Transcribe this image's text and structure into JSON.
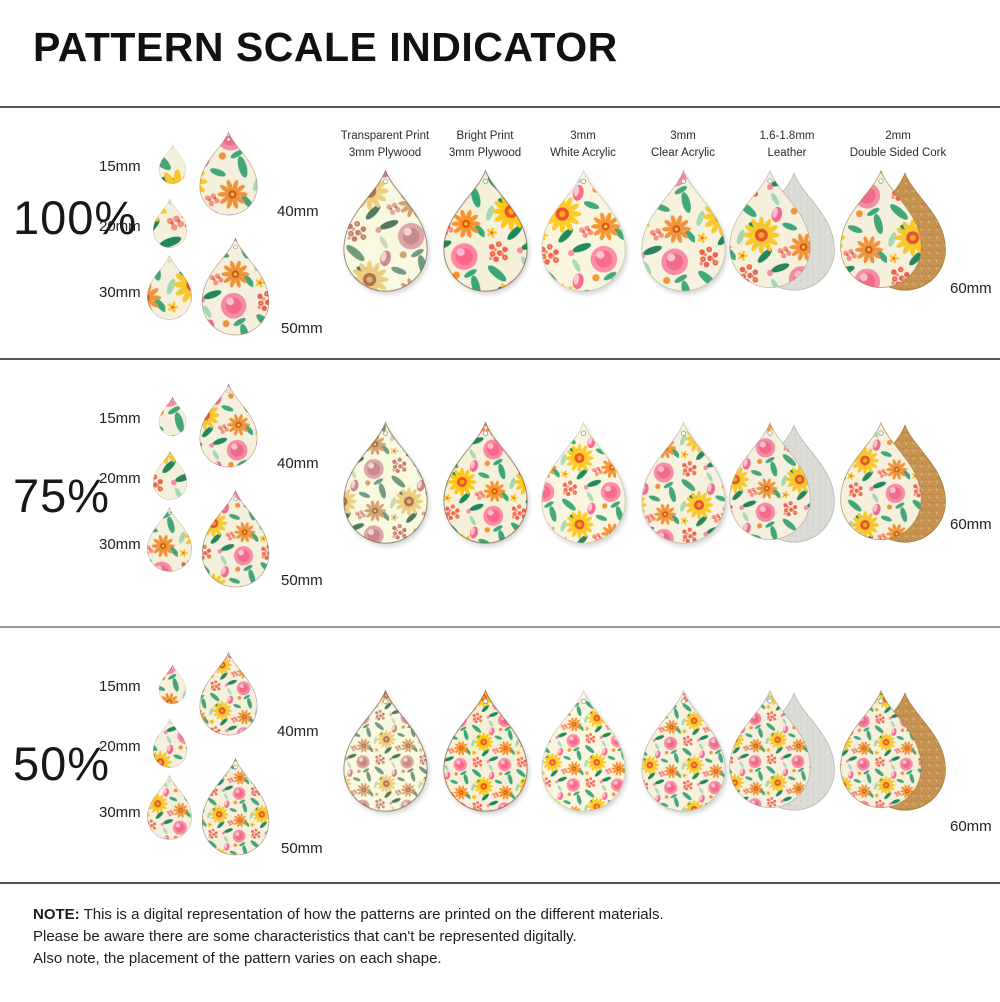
{
  "title": "PATTERN SCALE INDICATOR",
  "header": {
    "columns": [
      {
        "id": "transparent-plywood",
        "line1": "Transparent Print",
        "line2": "3mm Plywood"
      },
      {
        "id": "bright-plywood",
        "line1": "Bright Print",
        "line2": "3mm Plywood"
      },
      {
        "id": "white-acrylic",
        "line1": "3mm",
        "line2": "White Acrylic"
      },
      {
        "id": "clear-acrylic",
        "line1": "3mm",
        "line2": "Clear Acrylic"
      },
      {
        "id": "leather",
        "line1": "1.6-1.8mm",
        "line2": "Leather"
      },
      {
        "id": "cork",
        "line1": "2mm",
        "line2": "Double Sided Cork"
      }
    ]
  },
  "rows": [
    {
      "scale_label": "100%",
      "scale": 1.0
    },
    {
      "scale_label": "75%",
      "scale": 0.75
    },
    {
      "scale_label": "50%",
      "scale": 0.5
    }
  ],
  "size_samples": {
    "labels": [
      "15mm",
      "20mm",
      "30mm",
      "40mm",
      "50mm"
    ],
    "mm": [
      15,
      20,
      30,
      40,
      50
    ]
  },
  "material_size": {
    "label": "60mm",
    "mm": 60
  },
  "note": {
    "prefix": "NOTE:",
    "line1": "This is a digital representation of how the patterns are printed on the different materials.",
    "line2": "Please be aware there are some characteristics that can't be represented digitally.",
    "line3": "Also note, the placement of the pattern varies on each shape."
  },
  "colors": {
    "cream": "#f4f0dc",
    "green": "#43a578",
    "green_dark": "#24865c",
    "green_light": "#a6d7b4",
    "yellow": "#f7c72e",
    "yellow_deep": "#f0a81f",
    "orange": "#ef9338",
    "orange_deep": "#e2542f",
    "rust": "#c8551d",
    "coral": "#e96352",
    "coral_light": "#f49183",
    "pink": "#f48ca3",
    "pink_deep": "#ee6b8b",
    "pink_light": "#fbc0cd",
    "suede": "#dcdcd6",
    "cork": "#c79353",
    "wood_edge": "#6b4a33"
  }
}
